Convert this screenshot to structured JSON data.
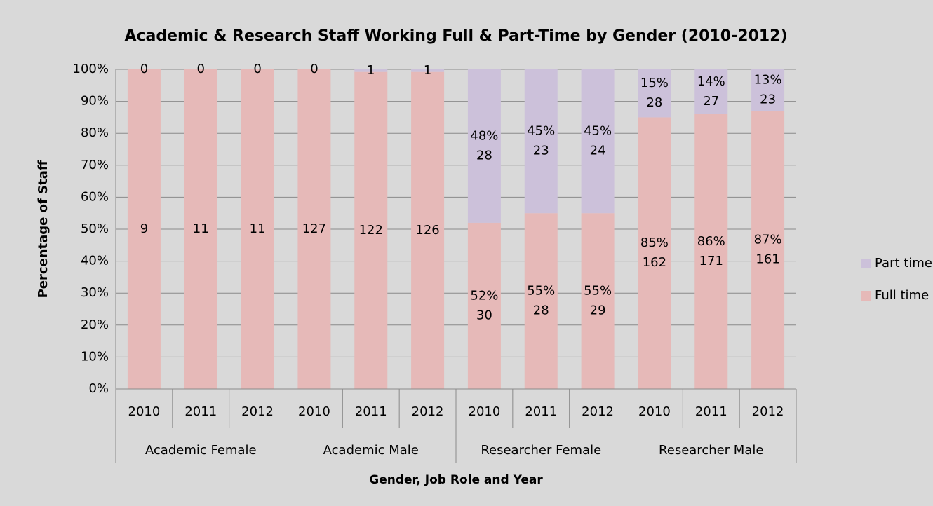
{
  "chart_data": {
    "type": "stacked_bar_100",
    "title": "Academic & Research Staff Working Full & Part-Time by Gender (2010-2012)",
    "x_label": "Gender, Job Role and Year",
    "y_label": "Percentage of Staff",
    "categories": [
      "2010",
      "2011",
      "2012",
      "2010",
      "2011",
      "2012",
      "2010",
      "2011",
      "2012",
      "2010",
      "2011",
      "2012"
    ],
    "groups": [
      "Academic Female",
      "Academic Male",
      "Researcher Female",
      "Researcher Male"
    ],
    "series": [
      {
        "name": "Full time",
        "color": "#e6b9b8",
        "values": [
          100,
          100,
          100,
          100,
          99.2,
          99.2,
          52,
          55,
          55,
          85,
          86,
          87
        ],
        "value_labels": [
          null,
          null,
          null,
          null,
          null,
          null,
          "52%",
          "55%",
          "55%",
          "85%",
          "86%",
          "87%"
        ],
        "counts": [
          9,
          11,
          11,
          127,
          122,
          126,
          30,
          28,
          29,
          162,
          171,
          161
        ]
      },
      {
        "name": "Part time",
        "color": "#ccc1da",
        "values": [
          0,
          0,
          0,
          0,
          0.8,
          0.8,
          48,
          45,
          45,
          15,
          14,
          13
        ],
        "value_labels": [
          null,
          null,
          null,
          null,
          null,
          null,
          "48%",
          "45%",
          "45%",
          "15%",
          "14%",
          "13%"
        ],
        "counts": [
          0,
          0,
          0,
          0,
          1,
          1,
          28,
          23,
          24,
          28,
          27,
          23
        ]
      }
    ],
    "ylim": [
      0,
      100
    ],
    "yticks": [
      {
        "value": 0,
        "label": "0%"
      },
      {
        "value": 10,
        "label": "10%"
      },
      {
        "value": 20,
        "label": "20%"
      },
      {
        "value": 30,
        "label": "30%"
      },
      {
        "value": 40,
        "label": "40%"
      },
      {
        "value": 50,
        "label": "50%"
      },
      {
        "value": 60,
        "label": "60%"
      },
      {
        "value": 70,
        "label": "70%"
      },
      {
        "value": 80,
        "label": "80%"
      },
      {
        "value": 90,
        "label": "90%"
      },
      {
        "value": 100,
        "label": "100%"
      }
    ],
    "grid": true,
    "legend": "right"
  }
}
